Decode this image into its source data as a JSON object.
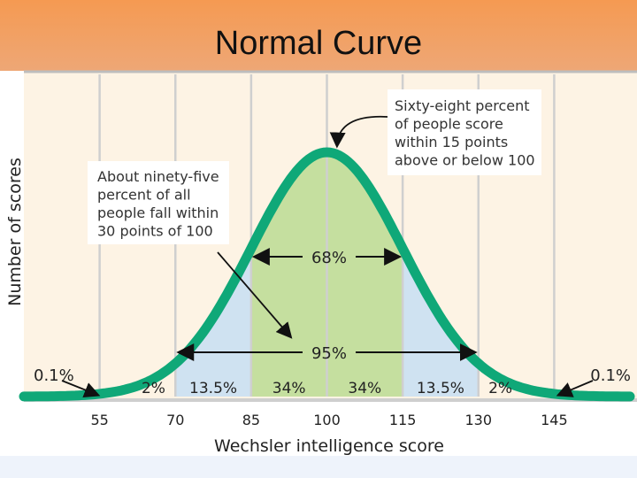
{
  "header": {
    "title": "Normal Curve"
  },
  "chart_data": {
    "type": "area",
    "title": "Normal Curve",
    "xlabel": "Wechsler intelligence score",
    "ylabel": "Number of scores",
    "mean": 100,
    "sd": 15,
    "xlim": [
      40,
      160
    ],
    "x_ticks": [
      55,
      70,
      85,
      100,
      115,
      130,
      145
    ],
    "regions": [
      {
        "from": 40,
        "to": 55,
        "percent": "0.1%"
      },
      {
        "from": 55,
        "to": 70,
        "percent": "2%"
      },
      {
        "from": 70,
        "to": 85,
        "percent": "13.5%"
      },
      {
        "from": 85,
        "to": 100,
        "percent": "34%"
      },
      {
        "from": 100,
        "to": 115,
        "percent": "34%"
      },
      {
        "from": 115,
        "to": 130,
        "percent": "13.5%"
      },
      {
        "from": 130,
        "to": 145,
        "percent": "2%"
      },
      {
        "from": 145,
        "to": 160,
        "percent": "0.1%"
      }
    ],
    "ranges": [
      {
        "from": 85,
        "to": 115,
        "label": "68%"
      },
      {
        "from": 70,
        "to": 130,
        "label": "95%"
      }
    ],
    "annotations": {
      "sixty_eight": [
        "Sixty-eight percent",
        "of people score",
        "within 15 points",
        "above or below 100"
      ],
      "ninety_five": [
        "About ninety-five",
        "percent of all",
        "people fall within",
        "30 points of 100"
      ]
    },
    "colors": {
      "curve": "#0fa878",
      "inner_fill": "#c5df9f",
      "middle_fill": "#cfe2f1",
      "background": "#fdf3e4",
      "gridline": "#cfcfcf"
    },
    "grid": true
  }
}
